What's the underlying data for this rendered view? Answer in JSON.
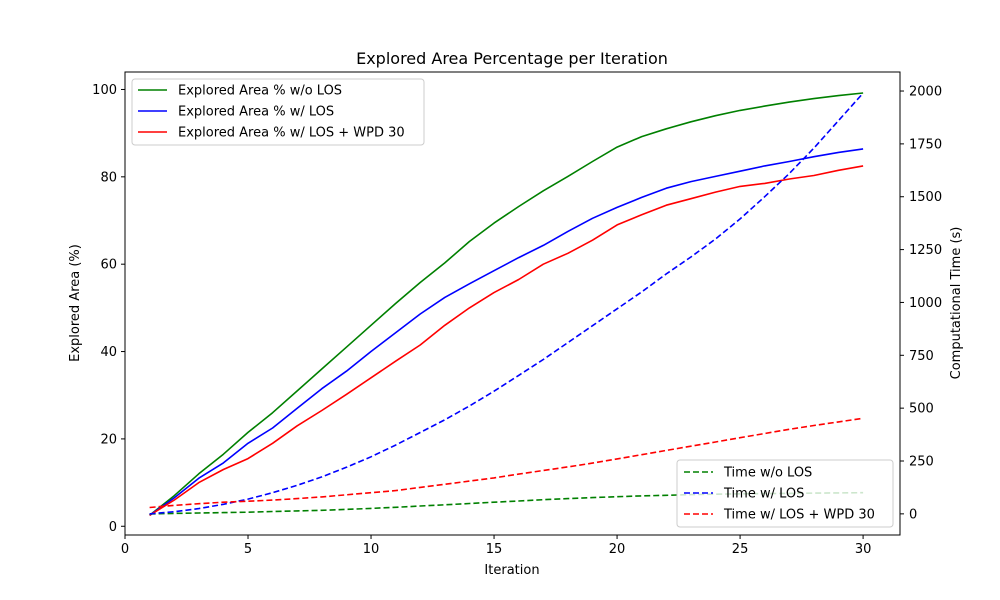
{
  "chart_data": {
    "type": "line",
    "title": "Explored Area Percentage per Iteration",
    "xlabel": "Iteration",
    "ylabel": "Explored Area (%)",
    "y2label": "Computational Time (s)",
    "xlim": [
      0,
      31.5
    ],
    "ylim": [
      -2,
      104
    ],
    "y2lim": [
      -100,
      2090
    ],
    "xticks": [
      0,
      5,
      10,
      15,
      20,
      25,
      30
    ],
    "yticks": [
      0,
      20,
      40,
      60,
      80,
      100
    ],
    "y2ticks": [
      0,
      250,
      500,
      750,
      1000,
      1250,
      1500,
      1750,
      2000
    ],
    "x": [
      1,
      2,
      3,
      4,
      5,
      6,
      7,
      8,
      9,
      10,
      11,
      12,
      13,
      14,
      15,
      16,
      17,
      18,
      19,
      20,
      21,
      22,
      23,
      24,
      25,
      26,
      27,
      28,
      29,
      30
    ],
    "series": [
      {
        "name": "Explored Area % w/o LOS",
        "axis": "left",
        "color": "#008000",
        "dash": "solid",
        "values": [
          2.5,
          7,
          12,
          16.5,
          21.5,
          26,
          31,
          36,
          41,
          46,
          51,
          55.8,
          60.3,
          65.2,
          69.4,
          73.2,
          76.8,
          80.1,
          83.5,
          86.8,
          89.2,
          91.0,
          92.6,
          94.0,
          95.2,
          96.2,
          97.1,
          97.9,
          98.6,
          99.2
        ]
      },
      {
        "name": "Explored Area % w/ LOS",
        "axis": "left",
        "color": "#0000ff",
        "dash": "solid",
        "values": [
          2.5,
          6.5,
          11,
          14.5,
          19,
          22.5,
          27,
          31.5,
          35.5,
          40,
          44.3,
          48.6,
          52.4,
          55.5,
          58.5,
          61.5,
          64.3,
          67.5,
          70.5,
          73.0,
          75.3,
          77.4,
          78.9,
          80.1,
          81.3,
          82.5,
          83.5,
          84.6,
          85.6,
          86.4
        ]
      },
      {
        "name": "Explored Area % w/ LOS + WPD 30",
        "axis": "left",
        "color": "#ff0000",
        "dash": "solid",
        "values": [
          2.5,
          6,
          10,
          13,
          15.5,
          19,
          23,
          26.5,
          30.2,
          34,
          37.8,
          41.5,
          46,
          50,
          53.5,
          56.5,
          60,
          62.5,
          65.5,
          69,
          71.3,
          73.5,
          75,
          76.5,
          77.8,
          78.5,
          79.5,
          80.3,
          81.5,
          82.5
        ]
      },
      {
        "name": "Time w/o LOS",
        "axis": "right",
        "color": "#008000",
        "dash": "dashed",
        "values": [
          0,
          2,
          4,
          6,
          8,
          11,
          14,
          17,
          21,
          26,
          31,
          37,
          43,
          49,
          55,
          61,
          67,
          72,
          77,
          81,
          85,
          88,
          91,
          93,
          95,
          96,
          97,
          98,
          99,
          100
        ]
      },
      {
        "name": "Time w/ LOS",
        "axis": "right",
        "color": "#0000ff",
        "dash": "dashed",
        "values": [
          0,
          10,
          25,
          45,
          70,
          100,
          135,
          175,
          220,
          270,
          325,
          385,
          445,
          510,
          580,
          655,
          730,
          810,
          890,
          970,
          1050,
          1135,
          1215,
          1300,
          1395,
          1500,
          1610,
          1730,
          1860,
          1990
        ]
      },
      {
        "name": "Time w/ LOS + WPD 30",
        "axis": "right",
        "color": "#ff0000",
        "dash": "dashed",
        "values": [
          30,
          40,
          48,
          55,
          60,
          65,
          72,
          80,
          90,
          100,
          110,
          125,
          140,
          155,
          170,
          188,
          205,
          222,
          240,
          260,
          280,
          300,
          320,
          340,
          360,
          380,
          400,
          418,
          435,
          452
        ]
      }
    ],
    "legends": [
      {
        "position": "upper-left",
        "entries": [
          "Explored Area % w/o LOS",
          "Explored Area % w/ LOS",
          "Explored Area % w/ LOS + WPD 30"
        ]
      },
      {
        "position": "lower-right",
        "entries": [
          "Time w/o LOS",
          "Time w/ LOS",
          "Time w/ LOS + WPD 30"
        ]
      }
    ],
    "grid": false
  }
}
